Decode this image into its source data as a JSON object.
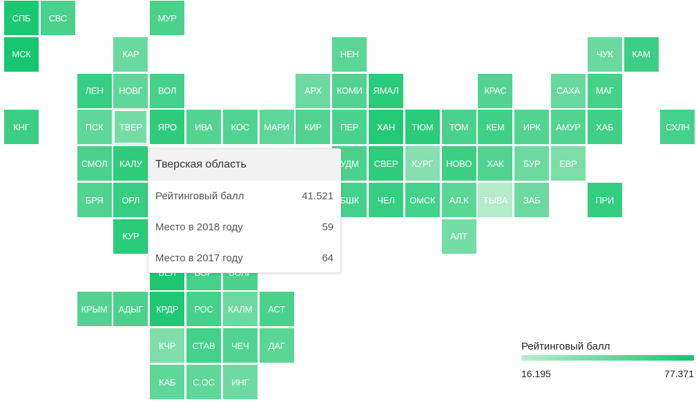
{
  "chart_data": {
    "type": "heatmap",
    "legend": {
      "title": "Рейтинговый балл",
      "min": 16.195,
      "max": 77.371,
      "min_label": "16.195",
      "max_label": "77.371",
      "color_min": "#b9eccc",
      "color_max": "#16c66e",
      "placement": "bottom-right"
    },
    "tiles": [
      {
        "label": "СПБ",
        "col": 0,
        "row": 0,
        "value": 75
      },
      {
        "label": "СВС",
        "col": 1,
        "row": 0,
        "value": 58
      },
      {
        "label": "МУР",
        "col": 4,
        "row": 0,
        "value": 58
      },
      {
        "label": "МСК",
        "col": 0,
        "row": 1,
        "value": 77.371
      },
      {
        "label": "КАР",
        "col": 3,
        "row": 1,
        "value": 46
      },
      {
        "label": "НЕН",
        "col": 9,
        "row": 1,
        "value": 52
      },
      {
        "label": "ЧУК",
        "col": 16,
        "row": 1,
        "value": 46
      },
      {
        "label": "КАМ",
        "col": 17,
        "row": 1,
        "value": 63
      },
      {
        "label": "ЛЕН",
        "col": 2,
        "row": 2,
        "value": 65
      },
      {
        "label": "НОВГ",
        "col": 3,
        "row": 2,
        "value": 50
      },
      {
        "label": "ВОЛ",
        "col": 4,
        "row": 2,
        "value": 60
      },
      {
        "label": "АРХ",
        "col": 8,
        "row": 2,
        "value": 45
      },
      {
        "label": "КОМИ",
        "col": 9,
        "row": 2,
        "value": 55
      },
      {
        "label": "ЯМАЛ",
        "col": 10,
        "row": 2,
        "value": 70
      },
      {
        "label": "КРАС",
        "col": 13,
        "row": 2,
        "value": 55
      },
      {
        "label": "САХА",
        "col": 15,
        "row": 2,
        "value": 47
      },
      {
        "label": "МАГ",
        "col": 16,
        "row": 2,
        "value": 60
      },
      {
        "label": "КНГ",
        "col": 0,
        "row": 3,
        "value": 63
      },
      {
        "label": "ПСК",
        "col": 2,
        "row": 3,
        "value": 50
      },
      {
        "label": "ТВЕР",
        "col": 3,
        "row": 3,
        "value": 41.521,
        "highlight": true
      },
      {
        "label": "ЯРО",
        "col": 4,
        "row": 3,
        "value": 68
      },
      {
        "label": "ИВА",
        "col": 5,
        "row": 3,
        "value": 55
      },
      {
        "label": "КОС",
        "col": 6,
        "row": 3,
        "value": 55
      },
      {
        "label": "МАРИ",
        "col": 7,
        "row": 3,
        "value": 50
      },
      {
        "label": "КИР",
        "col": 8,
        "row": 3,
        "value": 55
      },
      {
        "label": "ПЕР",
        "col": 9,
        "row": 3,
        "value": 58
      },
      {
        "label": "ХАН",
        "col": 10,
        "row": 3,
        "value": 72
      },
      {
        "label": "ТЮМ",
        "col": 11,
        "row": 3,
        "value": 70
      },
      {
        "label": "ТОМ",
        "col": 12,
        "row": 3,
        "value": 58
      },
      {
        "label": "КЕМ",
        "col": 13,
        "row": 3,
        "value": 62
      },
      {
        "label": "ИРК",
        "col": 14,
        "row": 3,
        "value": 55
      },
      {
        "label": "АМУР",
        "col": 15,
        "row": 3,
        "value": 55
      },
      {
        "label": "ХАБ",
        "col": 16,
        "row": 3,
        "value": 62
      },
      {
        "label": "СХЛН",
        "col": 18,
        "row": 3,
        "value": 60
      },
      {
        "label": "СМОЛ",
        "col": 2,
        "row": 4,
        "value": 58
      },
      {
        "label": "КАЛУ",
        "col": 3,
        "row": 4,
        "value": 68
      },
      {
        "label": "УДМ",
        "col": 9,
        "row": 4,
        "value": 58
      },
      {
        "label": "СВЕР",
        "col": 10,
        "row": 4,
        "value": 68
      },
      {
        "label": "КУРГ",
        "col": 11,
        "row": 4,
        "value": 35
      },
      {
        "label": "НОВО",
        "col": 12,
        "row": 4,
        "value": 63
      },
      {
        "label": "ХАК",
        "col": 13,
        "row": 4,
        "value": 55
      },
      {
        "label": "БУР",
        "col": 14,
        "row": 4,
        "value": 45
      },
      {
        "label": "ЕВР",
        "col": 15,
        "row": 4,
        "value": 40
      },
      {
        "label": "БРЯ",
        "col": 2,
        "row": 5,
        "value": 55
      },
      {
        "label": "ОРЛ",
        "col": 3,
        "row": 5,
        "value": 65
      },
      {
        "label": "БШК",
        "col": 9,
        "row": 5,
        "value": 60
      },
      {
        "label": "ЧЕЛ",
        "col": 10,
        "row": 5,
        "value": 65
      },
      {
        "label": "ОМСК",
        "col": 11,
        "row": 5,
        "value": 60
      },
      {
        "label": "АЛ.К",
        "col": 12,
        "row": 5,
        "value": 52
      },
      {
        "label": "ТЫВА",
        "col": 13,
        "row": 5,
        "value": 18
      },
      {
        "label": "ЗАБ",
        "col": 14,
        "row": 5,
        "value": 45
      },
      {
        "label": "ПРИ",
        "col": 16,
        "row": 5,
        "value": 66
      },
      {
        "label": "КУР",
        "col": 3,
        "row": 6,
        "value": 70
      },
      {
        "label": "АЛТ",
        "col": 12,
        "row": 6,
        "value": 42
      },
      {
        "label": "БЕЛ",
        "col": 4,
        "row": 7,
        "value": 75
      },
      {
        "label": "ВОР",
        "col": 5,
        "row": 7,
        "value": 60
      },
      {
        "label": "ВОЛГ",
        "col": 6,
        "row": 7,
        "value": 58
      },
      {
        "label": "КРЫМ",
        "col": 2,
        "row": 8,
        "value": 55
      },
      {
        "label": "АДЫГ",
        "col": 3,
        "row": 8,
        "value": 58
      },
      {
        "label": "КРДР",
        "col": 4,
        "row": 8,
        "value": 74
      },
      {
        "label": "РОС",
        "col": 5,
        "row": 8,
        "value": 60
      },
      {
        "label": "КАЛМ",
        "col": 6,
        "row": 8,
        "value": 45
      },
      {
        "label": "АСТ",
        "col": 7,
        "row": 8,
        "value": 58
      },
      {
        "label": "КЧР",
        "col": 4,
        "row": 9,
        "value": 38
      },
      {
        "label": "СТАВ",
        "col": 5,
        "row": 9,
        "value": 60
      },
      {
        "label": "ЧЕЧ",
        "col": 6,
        "row": 9,
        "value": 55
      },
      {
        "label": "ДАГ",
        "col": 7,
        "row": 9,
        "value": 52
      },
      {
        "label": "КАБ",
        "col": 4,
        "row": 10,
        "value": 50
      },
      {
        "label": "С.ОС",
        "col": 5,
        "row": 10,
        "value": 50
      },
      {
        "label": "ИНГ",
        "col": 6,
        "row": 10,
        "value": 45
      }
    ]
  },
  "tooltip": {
    "title": "Тверская область",
    "rows": [
      {
        "label": "Рейтинговый балл",
        "value": "41.521"
      },
      {
        "label": "Место в 2018 году",
        "value": "59"
      },
      {
        "label": "Место в 2017 году",
        "value": "64"
      }
    ]
  }
}
